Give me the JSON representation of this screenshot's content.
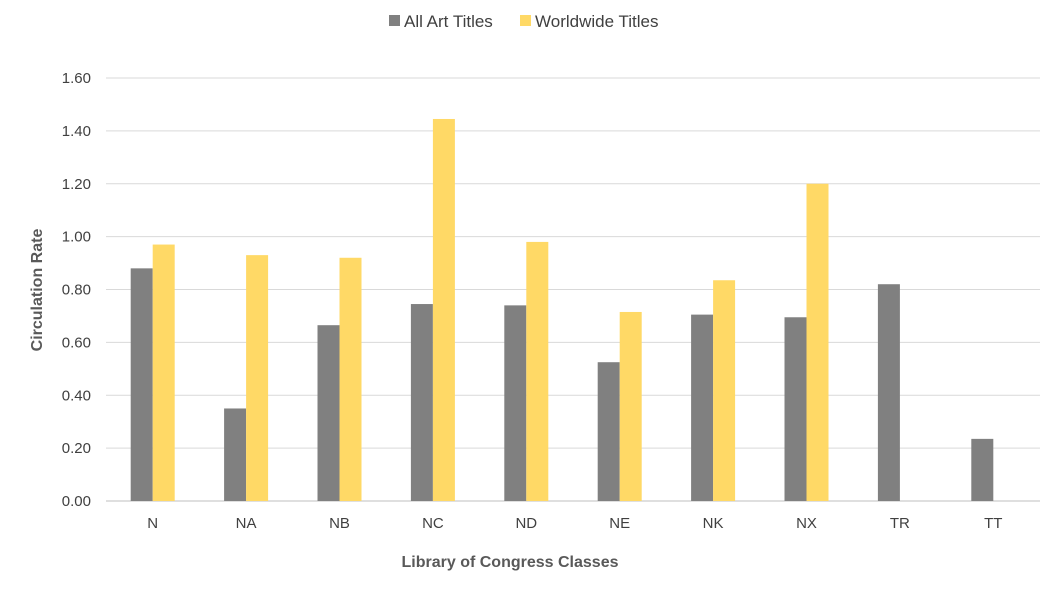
{
  "chart_data": {
    "type": "bar",
    "title": "",
    "xlabel": "Library of Congress Classes",
    "ylabel": "Circulation Rate",
    "ylim": [
      0,
      1.6
    ],
    "yticks": [
      "0.00",
      "0.20",
      "0.40",
      "0.60",
      "0.80",
      "1.00",
      "1.20",
      "1.40",
      "1.60"
    ],
    "grid": true,
    "legend_position": "top",
    "categories": [
      "N",
      "NA",
      "NB",
      "NC",
      "ND",
      "NE",
      "NK",
      "NX",
      "TR",
      "TT"
    ],
    "series": [
      {
        "name": "All Art Titles",
        "color": "#808080",
        "values": [
          0.88,
          0.35,
          0.665,
          0.745,
          0.74,
          0.525,
          0.705,
          0.695,
          0.82,
          0.235
        ]
      },
      {
        "name": "Worldwide Titles",
        "color": "#FFD966",
        "values": [
          0.97,
          0.93,
          0.92,
          1.445,
          0.98,
          0.715,
          0.835,
          1.2,
          null,
          null
        ]
      }
    ]
  }
}
